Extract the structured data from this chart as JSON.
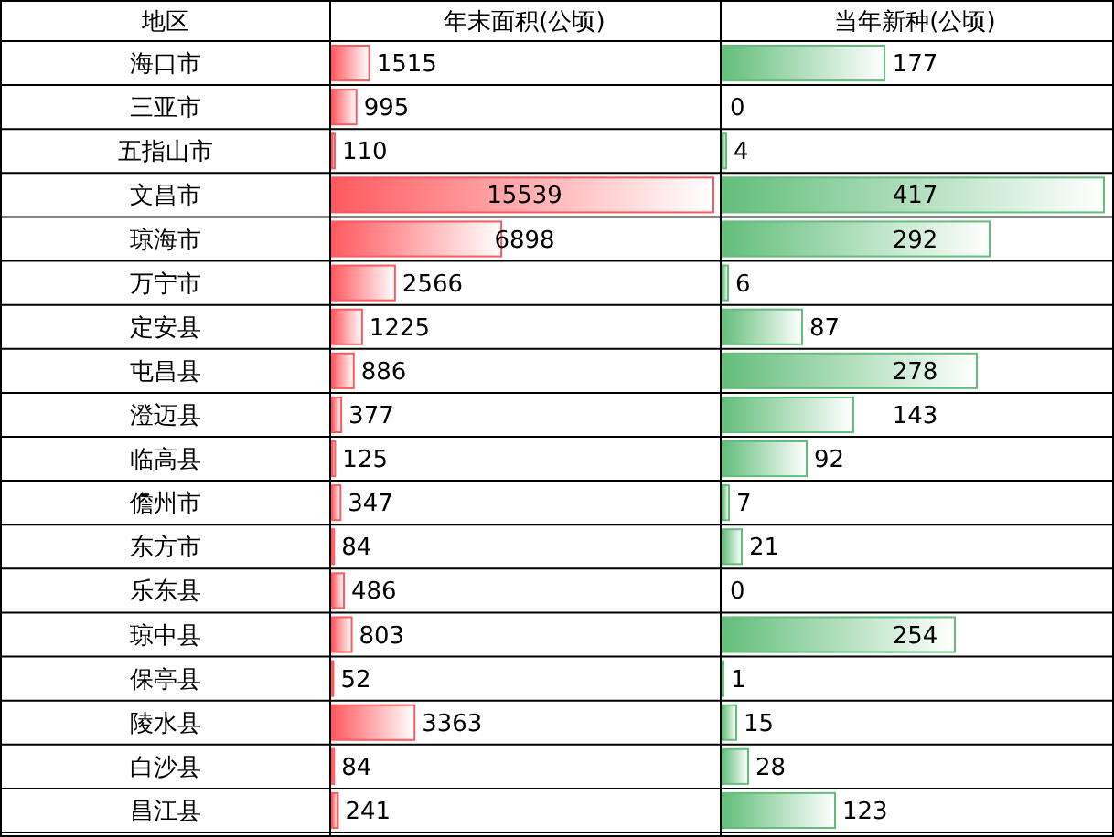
{
  "chart_data": [
    {
      "type": "bar",
      "orientation": "horizontal",
      "title": "年末面积(公顷)",
      "ylabel": "地区",
      "data_labels": true,
      "color": "#ff5a5f",
      "categories": [
        "海口市",
        "三亚市",
        "五指山市",
        "文昌市",
        "琼海市",
        "万宁市",
        "定安县",
        "屯昌县",
        "澄迈县",
        "临高县",
        "儋州市",
        "东方市",
        "乐东县",
        "琼中县",
        "保亭县",
        "陵水县",
        "白沙县",
        "昌江县"
      ],
      "values": [
        1515,
        995,
        110,
        15539,
        6898,
        2566,
        1225,
        886,
        377,
        125,
        347,
        84,
        486,
        803,
        52,
        3363,
        84,
        241
      ]
    },
    {
      "type": "bar",
      "orientation": "horizontal",
      "title": "当年新种(公顷)",
      "data_labels": true,
      "color": "#63be7b",
      "values": [
        177,
        0,
        4,
        417,
        292,
        6,
        87,
        278,
        143,
        92,
        7,
        21,
        0,
        254,
        1,
        15,
        28,
        123
      ]
    }
  ]
}
